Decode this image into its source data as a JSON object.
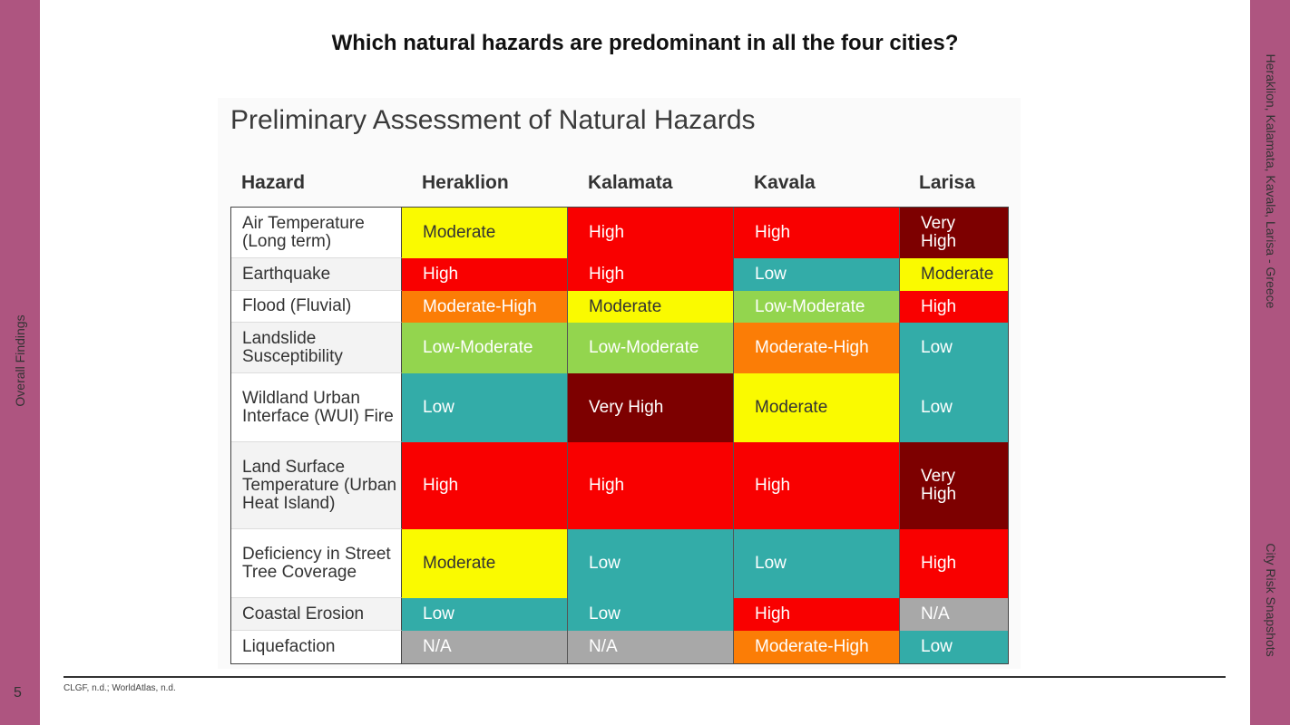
{
  "slide": {
    "title": "Which natural hazards are predominant in all the four cities?",
    "page_number": "5",
    "left_label": "Overall Findings",
    "right_label_top": "Heraklion, Kalamata, Kavala, Larisa - Greece",
    "right_label_bottom": "City Risk Snapshots",
    "source": "CLGF, n.d.; WorldAtlas, n.d.",
    "accent_color": "#ae5580"
  },
  "figure": {
    "title": "Preliminary Assessment of Natural Hazards",
    "headers": [
      "Hazard",
      "Heraklion",
      "Kalamata",
      "Kavala",
      "Larisa"
    ],
    "level_colors": {
      "Low": "#33aca8",
      "Low-Moderate": "#93d54e",
      "Moderate": "#fafa00",
      "Moderate-High": "#fb7d06",
      "High": "#f90000",
      "Very High": "#7d0000",
      "N/A": "#a8a8a8"
    },
    "rows": [
      {
        "hazard": "Air Temperature (Long term)",
        "values": [
          "Moderate",
          "High",
          "High",
          "Very High"
        ]
      },
      {
        "hazard": "Earthquake",
        "values": [
          "High",
          "High",
          "Low",
          "Moderate"
        ]
      },
      {
        "hazard": "Flood (Fluvial)",
        "values": [
          "Moderate-High",
          "Moderate",
          "Low-Moderate",
          "High"
        ]
      },
      {
        "hazard": "Landslide Susceptibility",
        "values": [
          "Low-Moderate",
          "Low-Moderate",
          "Moderate-High",
          "Low"
        ]
      },
      {
        "hazard": "Wildland Urban Interface (WUI) Fire",
        "values": [
          "Low",
          "Very High",
          "Moderate",
          "Low"
        ]
      },
      {
        "hazard": "Land Surface Temperature (Urban Heat Island)",
        "values": [
          "High",
          "High",
          "High",
          "Very High"
        ]
      },
      {
        "hazard": "Deficiency in Street Tree Coverage",
        "values": [
          "Moderate",
          "Low",
          "Low",
          "High"
        ]
      },
      {
        "hazard": "Coastal Erosion",
        "values": [
          "Low",
          "Low",
          "High",
          "N/A"
        ]
      },
      {
        "hazard": "Liquefaction",
        "values": [
          "N/A",
          "N/A",
          "Moderate-High",
          "Low"
        ]
      }
    ]
  }
}
